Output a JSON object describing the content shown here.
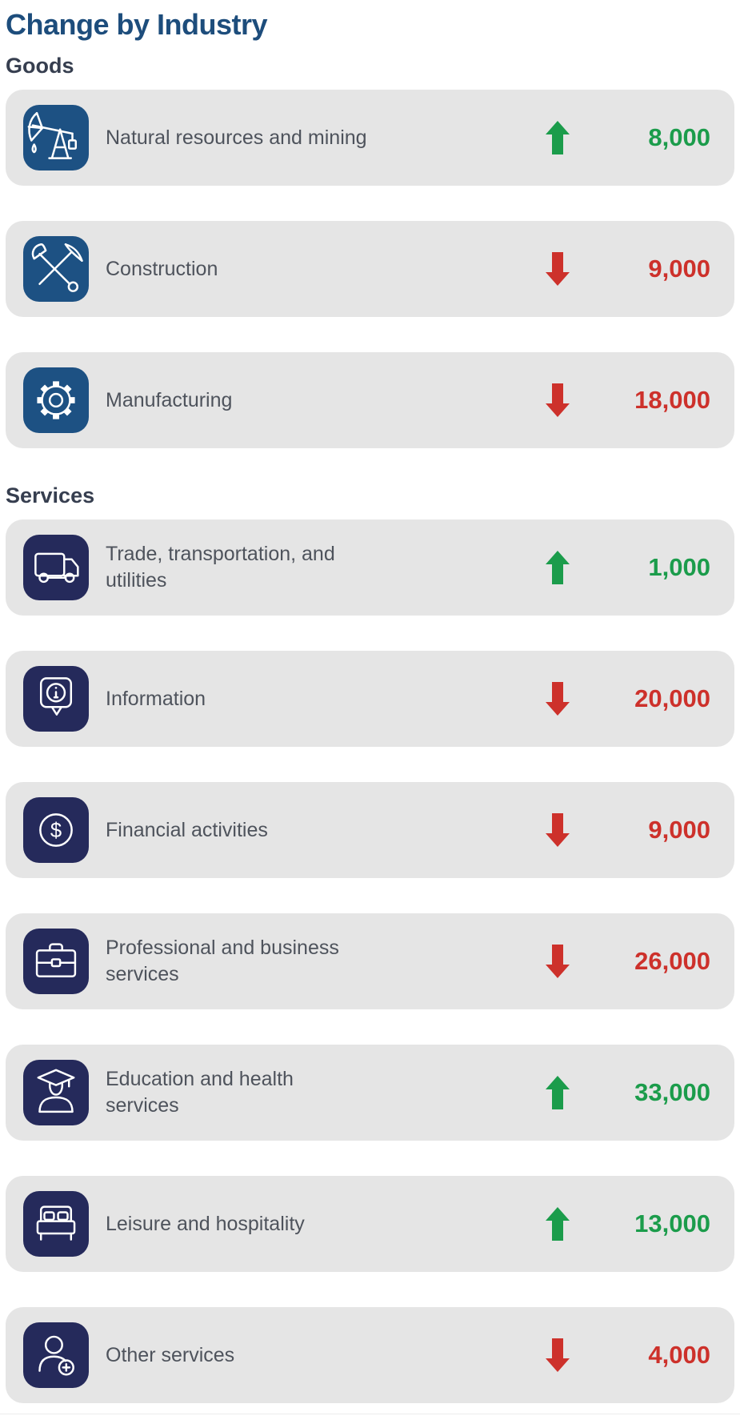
{
  "page": {
    "title": "Change by Industry"
  },
  "colors": {
    "title": "#1d4d7c",
    "section_header": "#363e4f",
    "row_background": "#e5e5e5",
    "label_text": "#4e535c",
    "positive": "#1b9c4b",
    "negative": "#cd312b",
    "goods_icon_background": "#1d5183",
    "services_icon_background": "#252a5b"
  },
  "sections": [
    {
      "label": "Goods",
      "icon_background": "#1d5183",
      "rows": [
        {
          "icon": "pumpjack-icon",
          "label": "Natural resources and mining",
          "direction": "up",
          "value": "8,000"
        },
        {
          "icon": "shovel-pickaxe-icon",
          "label": "Construction",
          "direction": "down",
          "value": "9,000"
        },
        {
          "icon": "gear-icon",
          "label": "Manufacturing",
          "direction": "down",
          "value": "18,000"
        }
      ]
    },
    {
      "label": "Services",
      "icon_background": "#252a5b",
      "rows": [
        {
          "icon": "delivery-truck-icon",
          "label": "Trade, transportation, and\nutilities",
          "direction": "up",
          "value": "1,000"
        },
        {
          "icon": "info-bubble-icon",
          "label": "Information",
          "direction": "down",
          "value": "20,000"
        },
        {
          "icon": "dollar-circle-icon",
          "label": "Financial activities",
          "direction": "down",
          "value": "9,000"
        },
        {
          "icon": "briefcase-icon",
          "label": "Professional and business\nservices",
          "direction": "down",
          "value": "26,000"
        },
        {
          "icon": "graduate-icon",
          "label": "Education and health\nservices",
          "direction": "up",
          "value": "33,000"
        },
        {
          "icon": "bed-icon",
          "label": "Leisure and hospitality",
          "direction": "up",
          "value": "13,000"
        },
        {
          "icon": "person-plus-icon",
          "label": "Other services",
          "direction": "down",
          "value": "4,000"
        }
      ]
    }
  ],
  "chart_data": {
    "type": "table",
    "title": "Change by Industry",
    "categories": [
      "Natural resources and mining",
      "Construction",
      "Manufacturing",
      "Trade, transportation, and utilities",
      "Information",
      "Financial activities",
      "Professional and business services",
      "Education and health services",
      "Leisure and hospitality",
      "Other services"
    ],
    "values": [
      8000,
      -9000,
      -18000,
      1000,
      -20000,
      -9000,
      -26000,
      33000,
      13000,
      -4000
    ],
    "groups": [
      "Goods",
      "Goods",
      "Goods",
      "Services",
      "Services",
      "Services",
      "Services",
      "Services",
      "Services",
      "Services"
    ],
    "legend_position": "none",
    "notes": "green up arrow = increase, red down arrow = decrease"
  }
}
